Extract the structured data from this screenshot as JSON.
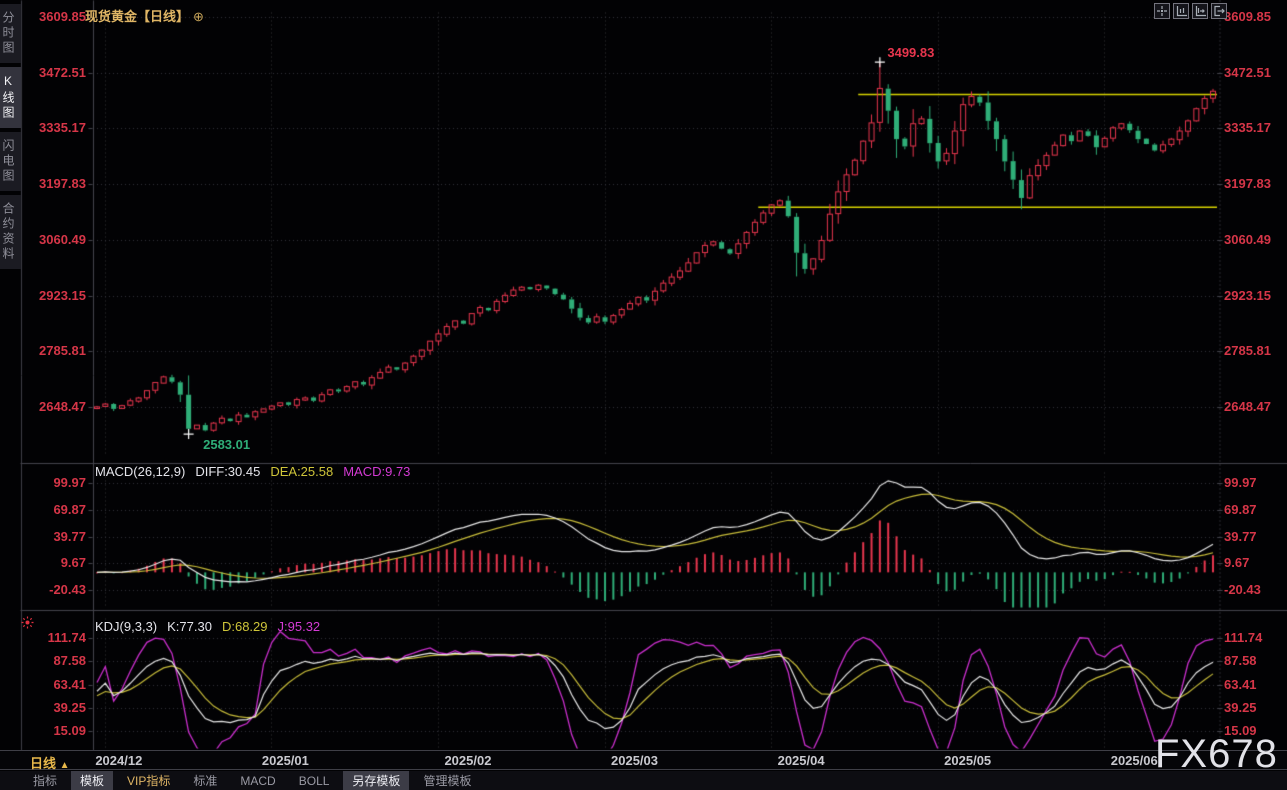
{
  "header": {
    "title": "现货黄金【日线】",
    "zoom_icon": "⊕"
  },
  "sidebar": {
    "items": [
      {
        "label": "分时图",
        "active": false
      },
      {
        "label": "K线图",
        "active": true
      },
      {
        "label": "闪电图",
        "active": false
      },
      {
        "label": "合约资料",
        "active": false
      }
    ]
  },
  "toolbar": {
    "icons": [
      "crosshair",
      "axis-scale",
      "axis-pan",
      "exit-chart"
    ]
  },
  "bottom_bar": {
    "timeframe": "日线",
    "timeframe_arrow": "▲",
    "tabs": [
      {
        "label": "指标",
        "style": "plain"
      },
      {
        "label": "模板",
        "style": "active"
      },
      {
        "label": "VIP指标",
        "style": "vip"
      },
      {
        "label": "标准",
        "style": "plain"
      },
      {
        "label": "MACD",
        "style": "plain"
      },
      {
        "label": "BOLL",
        "style": "plain"
      },
      {
        "label": "另存模板",
        "style": "active"
      },
      {
        "label": "管理模板",
        "style": "plain"
      }
    ]
  },
  "watermark": "FX678",
  "colors": {
    "up": "#e8364e",
    "down": "#2fae78",
    "axis_text": "#d63648",
    "overlay_line": "#d8d400",
    "grid": "#35353b",
    "border": "#44444c",
    "diff_line": "#e8e8e8",
    "dea_line": "#c8bd3a",
    "k_line": "#e8e8e8",
    "d_line": "#c8bd3a",
    "j_line": "#cc2fcf",
    "marker": "#ffffff",
    "title": "#dfb565"
  },
  "chart_data": {
    "type": "candlestick",
    "symbol": "现货黄金",
    "timeframe": "日线",
    "price_axis": [
      3609.85,
      3472.51,
      3335.17,
      3197.83,
      3060.49,
      2923.15,
      2785.81,
      2648.47
    ],
    "time_axis": [
      {
        "label": "2024/12",
        "index": 1
      },
      {
        "label": "2025/01",
        "index": 21
      },
      {
        "label": "2025/02",
        "index": 41
      },
      {
        "label": "2025/03",
        "index": 61
      },
      {
        "label": "2025/04",
        "index": 81
      },
      {
        "label": "2025/05",
        "index": 101
      },
      {
        "label": "2025/06",
        "index": 121
      }
    ],
    "first_open": 2646,
    "closes": [
      2650,
      2657,
      2645,
      2653,
      2665,
      2672,
      2690,
      2710,
      2724,
      2712,
      2680,
      2596,
      2605,
      2592,
      2610,
      2622,
      2615,
      2630,
      2624,
      2638,
      2645,
      2652,
      2660,
      2655,
      2668,
      2672,
      2665,
      2680,
      2692,
      2688,
      2700,
      2712,
      2705,
      2722,
      2735,
      2748,
      2742,
      2758,
      2775,
      2790,
      2812,
      2830,
      2848,
      2862,
      2855,
      2880,
      2895,
      2888,
      2910,
      2925,
      2938,
      2945,
      2940,
      2950,
      2942,
      2928,
      2915,
      2892,
      2870,
      2858,
      2872,
      2860,
      2875,
      2890,
      2905,
      2920,
      2912,
      2935,
      2955,
      2970,
      2985,
      3005,
      3030,
      3048,
      3057,
      3040,
      3028,
      3052,
      3080,
      3105,
      3128,
      3148,
      3158,
      3120,
      3030,
      2990,
      3015,
      3060,
      3125,
      3180,
      3222,
      3258,
      3305,
      3350,
      3435,
      3380,
      3310,
      3292,
      3348,
      3360,
      3300,
      3255,
      3275,
      3330,
      3395,
      3415,
      3400,
      3355,
      3310,
      3255,
      3210,
      3165,
      3220,
      3245,
      3270,
      3295,
      3320,
      3305,
      3330,
      3318,
      3290,
      3312,
      3338,
      3348,
      3332,
      3310,
      3298,
      3282,
      3296,
      3310,
      3330,
      3355,
      3385,
      3410,
      3428
    ],
    "high_annotation": {
      "index": 94,
      "value": 3499.83
    },
    "low_annotation": {
      "index": 11,
      "value": 2583.01
    },
    "overlay_lines": [
      {
        "price": 3420,
        "from_index": 92
      },
      {
        "price": 3142,
        "from_index": 80
      }
    ],
    "macd": {
      "title": "MACD(26,12,9)",
      "params": [
        26,
        12,
        9
      ],
      "values": {
        "diff": "DIFF:30.45",
        "dea": "DEA:25.58",
        "macd": "MACD:9.73"
      },
      "axis": [
        99.97,
        69.87,
        39.77,
        9.67,
        -20.43
      ]
    },
    "kdj": {
      "title": "KDJ(9,3,3)",
      "params": [
        9,
        3,
        3
      ],
      "values": {
        "k": "K:77.30",
        "d": "D:68.29",
        "j": "J:95.32"
      },
      "axis": [
        111.74,
        87.58,
        63.41,
        39.25,
        15.09
      ]
    }
  }
}
